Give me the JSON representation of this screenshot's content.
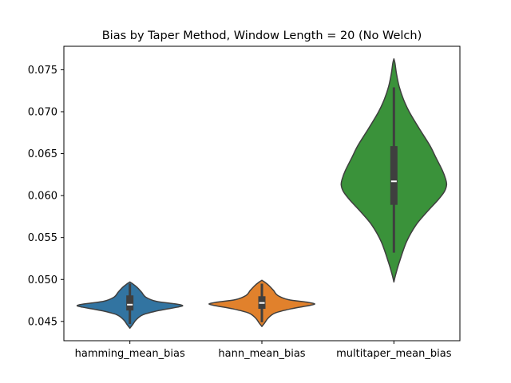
{
  "chart_data": {
    "type": "violin",
    "title": "Bias by Taper Method, Window Length = 20 (No Welch)",
    "xlabel": "",
    "ylabel": "",
    "ylim": [
      0.0427,
      0.0778
    ],
    "yticks": [
      "0.045",
      "0.050",
      "0.055",
      "0.060",
      "0.065",
      "0.070",
      "0.075"
    ],
    "ytick_values": [
      0.045,
      0.05,
      0.055,
      0.06,
      0.065,
      0.07,
      0.075
    ],
    "categories": [
      "hamming_mean_bias",
      "hann_mean_bias",
      "multitaper_mean_bias"
    ],
    "grid": false,
    "legend": "none",
    "series": [
      {
        "color": "#3274a1",
        "density": [
          [
            0.0442,
            0.0
          ],
          [
            0.0446,
            0.05
          ],
          [
            0.0452,
            0.12
          ],
          [
            0.0458,
            0.25
          ],
          [
            0.0463,
            0.55
          ],
          [
            0.0467,
            0.9
          ],
          [
            0.0469,
            1.0
          ],
          [
            0.0471,
            0.85
          ],
          [
            0.0474,
            0.5
          ],
          [
            0.0479,
            0.3
          ],
          [
            0.0485,
            0.22
          ],
          [
            0.0491,
            0.13
          ],
          [
            0.0495,
            0.05
          ],
          [
            0.0497,
            0.0
          ]
        ],
        "q1": 0.0463,
        "median": 0.047,
        "q3": 0.0481,
        "whisker_low": 0.0447,
        "whisker_high": 0.0495
      },
      {
        "color": "#e1812c",
        "density": [
          [
            0.0444,
            0.0
          ],
          [
            0.0448,
            0.05
          ],
          [
            0.0454,
            0.12
          ],
          [
            0.046,
            0.25
          ],
          [
            0.0465,
            0.55
          ],
          [
            0.0469,
            0.9
          ],
          [
            0.0471,
            1.0
          ],
          [
            0.0473,
            0.85
          ],
          [
            0.0476,
            0.5
          ],
          [
            0.0481,
            0.3
          ],
          [
            0.0487,
            0.22
          ],
          [
            0.0493,
            0.13
          ],
          [
            0.0497,
            0.05
          ],
          [
            0.0499,
            0.0
          ]
        ],
        "q1": 0.0465,
        "median": 0.0472,
        "q3": 0.048,
        "whisker_low": 0.0449,
        "whisker_high": 0.0495
      },
      {
        "color": "#3a923a",
        "density": [
          [
            0.0497,
            0.0
          ],
          [
            0.0505,
            0.03
          ],
          [
            0.052,
            0.1
          ],
          [
            0.0545,
            0.24
          ],
          [
            0.0565,
            0.42
          ],
          [
            0.058,
            0.62
          ],
          [
            0.0595,
            0.84
          ],
          [
            0.0605,
            0.96
          ],
          [
            0.0613,
            1.0
          ],
          [
            0.062,
            0.98
          ],
          [
            0.063,
            0.92
          ],
          [
            0.0645,
            0.8
          ],
          [
            0.066,
            0.68
          ],
          [
            0.068,
            0.48
          ],
          [
            0.07,
            0.29
          ],
          [
            0.0715,
            0.18
          ],
          [
            0.073,
            0.1
          ],
          [
            0.0745,
            0.05
          ],
          [
            0.0758,
            0.02
          ],
          [
            0.0763,
            0.0
          ]
        ],
        "q1": 0.0589,
        "median": 0.0617,
        "q3": 0.0659,
        "whisker_low": 0.0532,
        "whisker_high": 0.0729
      }
    ]
  }
}
